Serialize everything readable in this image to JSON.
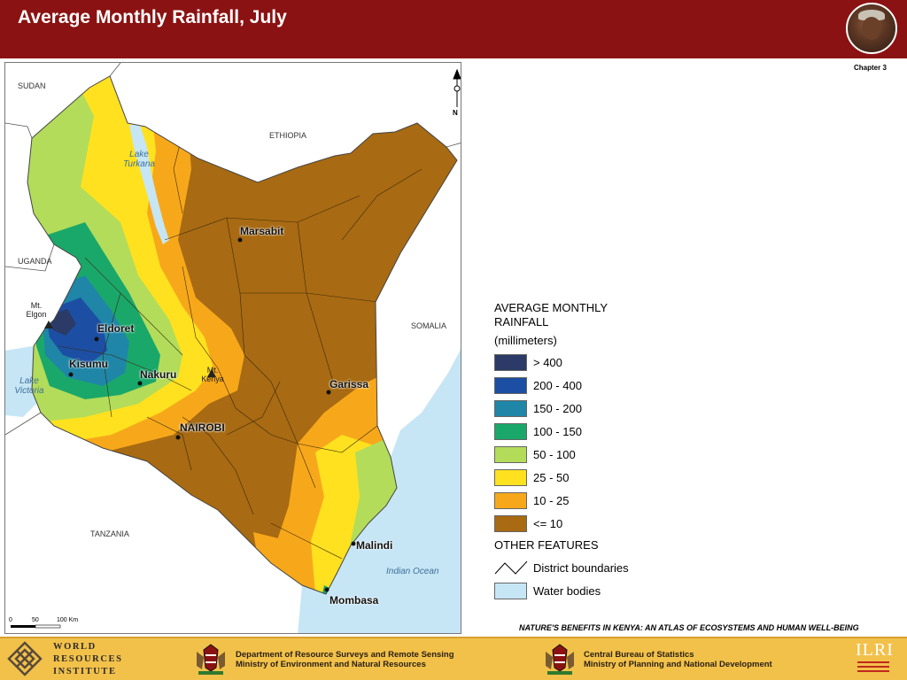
{
  "header": {
    "title": "Average Monthly Rainfall, July"
  },
  "chapter_label": "Chapter 3",
  "map": {
    "countries": {
      "sudan": "SUDAN",
      "ethiopia": "ETHIOPIA",
      "uganda": "UGANDA",
      "somalia": "SOMALIA",
      "tanzania": "TANZANIA"
    },
    "water_bodies": {
      "lake_turkana": "Lake Turkana",
      "lake_victoria": "Lake Victoria",
      "indian_ocean": "Indian Ocean"
    },
    "towns": {
      "marsabit": "Marsabit",
      "eldoret": "Eldoret",
      "kisumu": "Kisumu",
      "nakuru": "Nakuru",
      "nairobi": "NAIROBI",
      "garissa": "Garissa",
      "malindi": "Malindi",
      "mombasa": "Mombasa"
    },
    "mountains": {
      "elgon": "Mt. Elgon",
      "kenya": "Mt. Kenya"
    },
    "north_arrow_label": "N",
    "scale_bar": {
      "ticks": [
        "0",
        "50",
        "100 Km"
      ]
    }
  },
  "legend": {
    "title": "AVERAGE MONTHLY RAINFALL",
    "units": "(millimeters)",
    "classes": [
      {
        "label": "> 400",
        "color": "#2b3a66"
      },
      {
        "label": "200 - 400",
        "color": "#1c4fa3"
      },
      {
        "label": "150 - 200",
        "color": "#1f86a8"
      },
      {
        "label": "100 - 150",
        "color": "#1aa86a"
      },
      {
        "label": "50 - 100",
        "color": "#b3dc5a"
      },
      {
        "label": "25 - 50",
        "color": "#ffe11f"
      },
      {
        "label": "10 - 25",
        "color": "#f7a81a"
      },
      {
        "label": "<= 10",
        "color": "#a86a12"
      }
    ],
    "other_features_title": "OTHER FEATURES",
    "other_features": [
      {
        "label": "District boundaries"
      },
      {
        "label": "Water bodies",
        "color": "#c6e6f6"
      }
    ]
  },
  "atlas_title": "NATURE'S BENEFITS IN KENYA: AN ATLAS OF ECOSYSTEMS AND HUMAN WELL-BEING",
  "footer": {
    "wri_lines": [
      "WORLD",
      "RESOURCES",
      "INSTITUTE"
    ],
    "dept1_line1": "Department of Resource Surveys and Remote Sensing",
    "dept1_line2": "Ministry of Environment and Natural Resources",
    "dept2_line1": "Central Bureau of Statistics",
    "dept2_line2": "Ministry of Planning and National Development",
    "ilri": "ILRI"
  },
  "colors": {
    "header_bg": "#8b1212",
    "footer_bg": "#f2c14a",
    "water": "#c6e6f6",
    "outside_land": "#ffffff"
  }
}
